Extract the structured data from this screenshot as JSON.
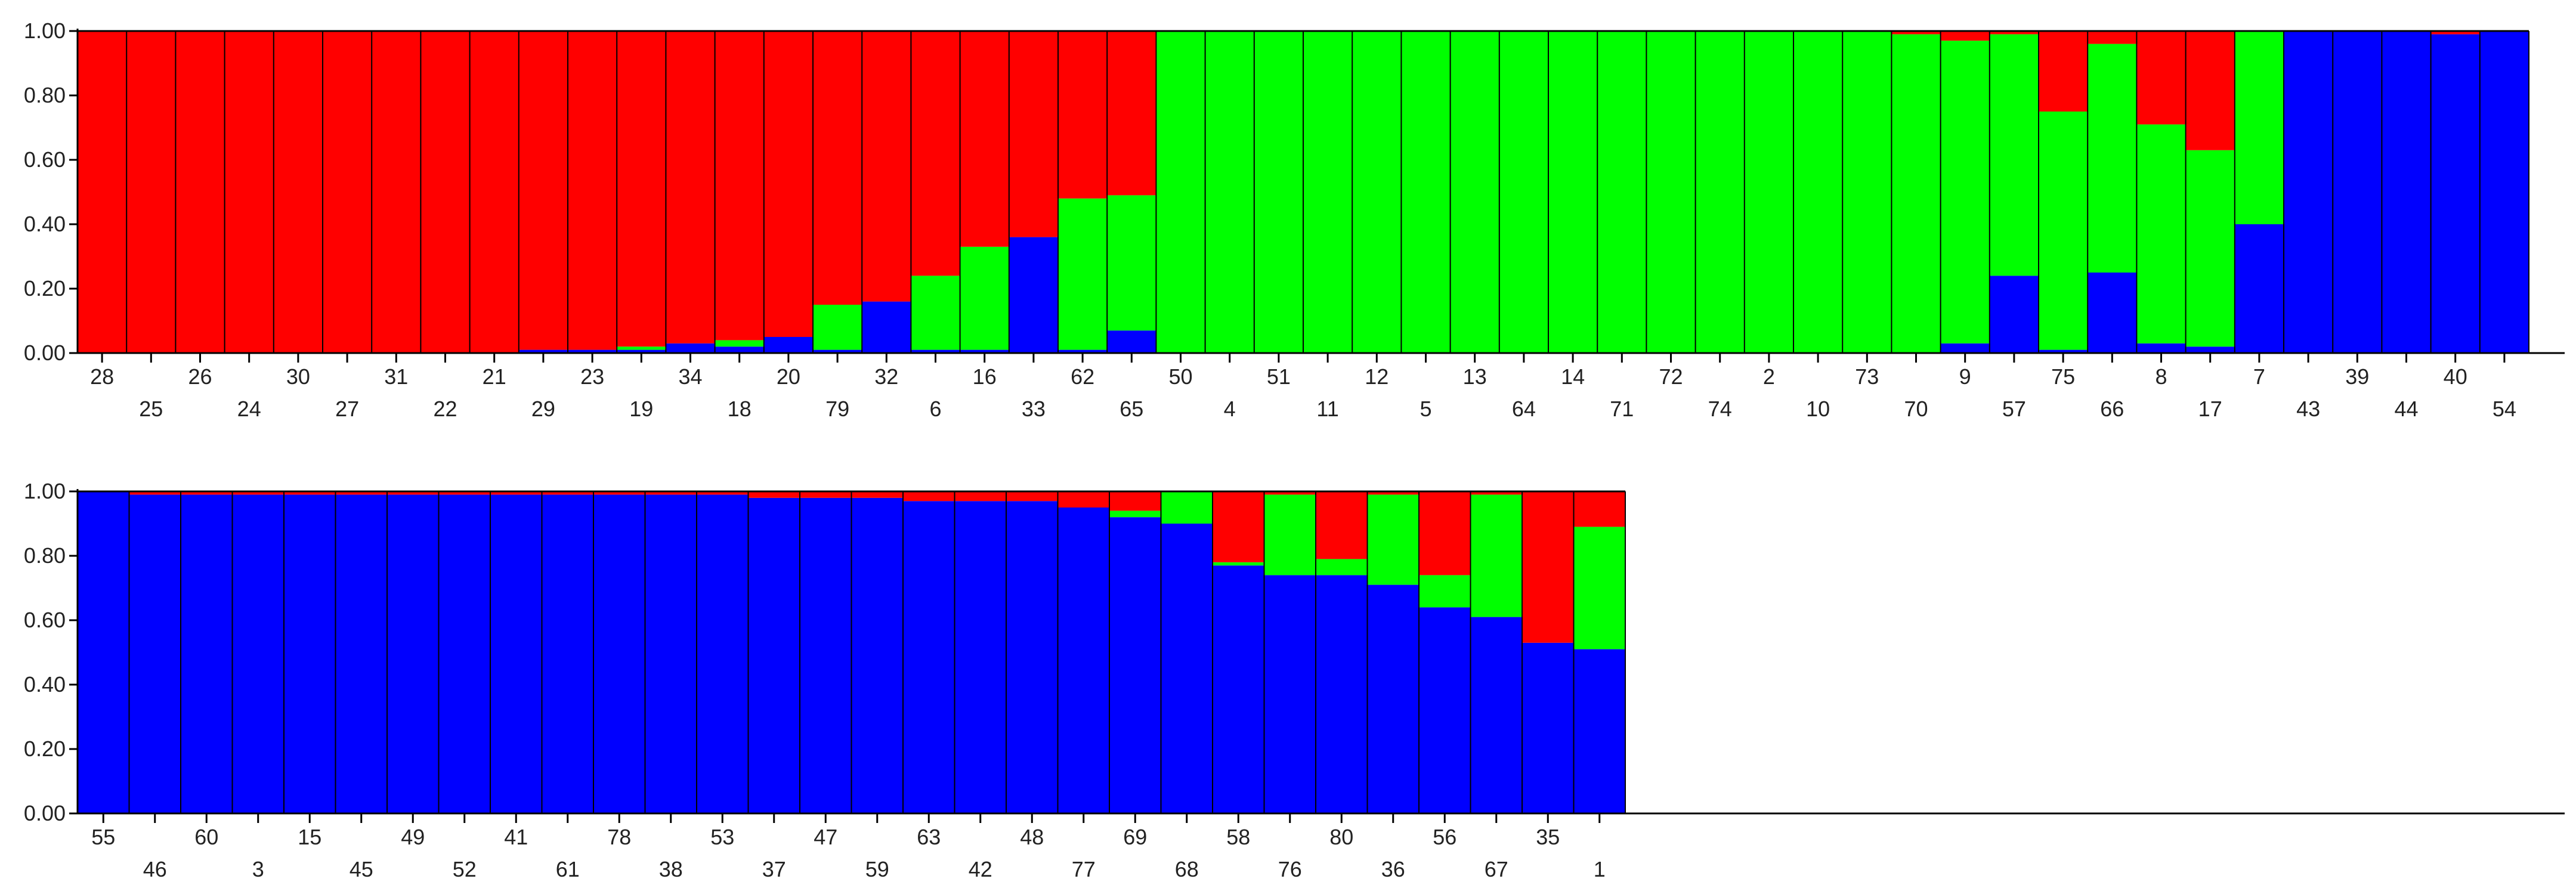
{
  "colors": {
    "cluster1": "#ff0000",
    "cluster2": "#00ff00",
    "cluster3": "#0000ff",
    "border": "#000000"
  },
  "chart_data": [
    {
      "type": "bar",
      "stacked": true,
      "ylim": [
        0,
        1
      ],
      "yticks": [
        "0.00",
        "0.20",
        "0.40",
        "0.60",
        "0.80",
        "1.00"
      ],
      "categories": [
        "28",
        "25",
        "26",
        "24",
        "30",
        "27",
        "31",
        "22",
        "21",
        "29",
        "23",
        "19",
        "34",
        "18",
        "20",
        "79",
        "32",
        "6",
        "16",
        "33",
        "62",
        "65",
        "50",
        "4",
        "51",
        "11",
        "12",
        "5",
        "13",
        "64",
        "14",
        "71",
        "72",
        "74",
        "2",
        "10",
        "73",
        "70",
        "9",
        "57",
        "75",
        "66",
        "8",
        "17",
        "7",
        "43",
        "39",
        "44",
        "40",
        "54"
      ],
      "series": [
        {
          "color": "#0000ff",
          "values": [
            0,
            0,
            0,
            0,
            0,
            0,
            0,
            0,
            0,
            0.01,
            0.01,
            0.01,
            0.03,
            0.02,
            0.05,
            0.01,
            0.16,
            0.01,
            0.01,
            0.36,
            0.01,
            0.07,
            0,
            0,
            0,
            0,
            0,
            0,
            0,
            0,
            0,
            0,
            0,
            0,
            0,
            0,
            0,
            0,
            0.03,
            0.24,
            0.01,
            0.25,
            0.03,
            0.02,
            0.4,
            1.0,
            1.0,
            1.0,
            0.99,
            1.0
          ]
        },
        {
          "color": "#00ff00",
          "values": [
            0,
            0,
            0,
            0,
            0,
            0,
            0,
            0,
            0,
            0,
            0,
            0.01,
            0,
            0.02,
            0,
            0.14,
            0,
            0.23,
            0.32,
            0,
            0.47,
            0.42,
            1.0,
            1.0,
            1.0,
            1.0,
            1.0,
            1.0,
            1.0,
            1.0,
            1.0,
            1.0,
            1.0,
            1.0,
            1.0,
            1.0,
            1.0,
            0.99,
            0.94,
            0.75,
            0.74,
            0.71,
            0.68,
            0.61,
            0.6,
            0,
            0,
            0,
            0,
            0
          ]
        },
        {
          "color": "#ff0000",
          "values": [
            1.0,
            1.0,
            1.0,
            1.0,
            1.0,
            1.0,
            1.0,
            1.0,
            1.0,
            0.99,
            0.99,
            0.98,
            0.97,
            0.96,
            0.95,
            0.85,
            0.84,
            0.76,
            0.67,
            0.64,
            0.52,
            0.51,
            0,
            0,
            0,
            0,
            0,
            0,
            0,
            0,
            0,
            0,
            0,
            0,
            0,
            0,
            0,
            0.01,
            0.03,
            0.01,
            0.25,
            0.04,
            0.29,
            0.37,
            0,
            0,
            0,
            0,
            0.01,
            0
          ]
        }
      ]
    },
    {
      "type": "bar",
      "stacked": true,
      "ylim": [
        0,
        1
      ],
      "yticks": [
        "0.00",
        "0.20",
        "0.40",
        "0.60",
        "0.80",
        "1.00"
      ],
      "categories": [
        "55",
        "46",
        "60",
        "3",
        "15",
        "45",
        "49",
        "52",
        "41",
        "61",
        "78",
        "38",
        "53",
        "37",
        "47",
        "59",
        "63",
        "42",
        "48",
        "77",
        "69",
        "68",
        "58",
        "76",
        "80",
        "36",
        "56",
        "67",
        "35",
        "1"
      ],
      "series": [
        {
          "color": "#0000ff",
          "values": [
            1.0,
            0.99,
            0.99,
            0.99,
            0.99,
            0.99,
            0.99,
            0.99,
            0.99,
            0.99,
            0.99,
            0.99,
            0.99,
            0.98,
            0.98,
            0.98,
            0.97,
            0.97,
            0.97,
            0.95,
            0.92,
            0.9,
            0.77,
            0.74,
            0.74,
            0.71,
            0.64,
            0.61,
            0.53,
            0.51
          ]
        },
        {
          "color": "#00ff00",
          "values": [
            0,
            0,
            0,
            0,
            0,
            0,
            0,
            0,
            0,
            0,
            0,
            0,
            0,
            0,
            0,
            0,
            0,
            0,
            0,
            0,
            0.02,
            0.1,
            0.01,
            0.25,
            0.05,
            0.28,
            0.1,
            0.38,
            0,
            0.38
          ]
        },
        {
          "color": "#ff0000",
          "values": [
            0,
            0.01,
            0.01,
            0.01,
            0.01,
            0.01,
            0.01,
            0.01,
            0.01,
            0.01,
            0.01,
            0.01,
            0.01,
            0.02,
            0.02,
            0.02,
            0.03,
            0.03,
            0.03,
            0.05,
            0.06,
            0,
            0.22,
            0.01,
            0.21,
            0.01,
            0.26,
            0.01,
            0.47,
            0.11
          ]
        }
      ]
    }
  ]
}
